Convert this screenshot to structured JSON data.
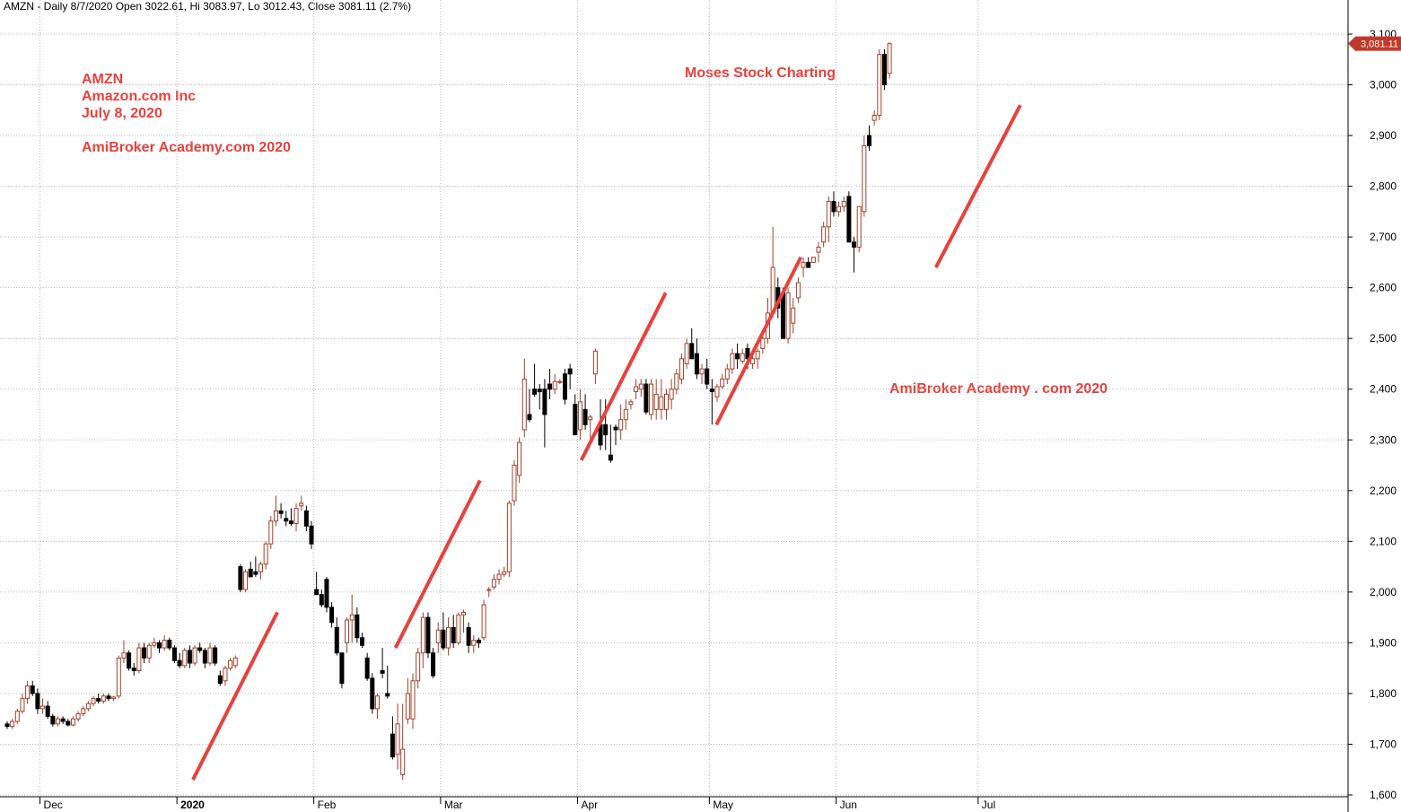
{
  "header": "AMZN - Daily 8/7/2020 Open 3022.61, Hi 3083.97, Lo 3012.43, Close 3081.11 (2.7%)",
  "annotations": {
    "info_lines": [
      "AMZN",
      "Amazon.com Inc",
      "July 8, 2020"
    ],
    "watermark_1": "AmiBroker Academy.com  2020",
    "watermark_2": "Moses Stock Charting",
    "watermark_3": "AmiBroker Academy . com  2020"
  },
  "colors": {
    "annotation": "#e8413c",
    "up_candle": "#a0412a",
    "down_candle": "#000000",
    "trend_line": "#e8413c",
    "last_price_bg": "#c0392b"
  },
  "chart_data": {
    "type": "candlestick",
    "ylim": [
      1600,
      3100
    ],
    "y_ticks": [
      "1,600",
      "1,700",
      "1,800",
      "1,900",
      "2,000",
      "2,100",
      "2,200",
      "2,300",
      "2,400",
      "2,500",
      "2,600",
      "2,700",
      "2,800",
      "2,900",
      "3,000",
      "3,100"
    ],
    "x_ticks": [
      {
        "label": "Dec",
        "bold": false
      },
      {
        "label": "2020",
        "bold": true
      },
      {
        "label": "Feb",
        "bold": false
      },
      {
        "label": "Mar",
        "bold": false
      },
      {
        "label": "Apr",
        "bold": false
      },
      {
        "label": "May",
        "bold": false
      },
      {
        "label": "Jun",
        "bold": false
      },
      {
        "label": "Jul",
        "bold": false
      }
    ],
    "last_price": "3,081.11",
    "last_close": 3081.11,
    "grid": true,
    "candles": [
      [
        1740,
        1745,
        1730,
        1735
      ],
      [
        1735,
        1750,
        1730,
        1745
      ],
      [
        1745,
        1770,
        1740,
        1765
      ],
      [
        1765,
        1800,
        1760,
        1790
      ],
      [
        1790,
        1825,
        1780,
        1815
      ],
      [
        1815,
        1825,
        1795,
        1800
      ],
      [
        1800,
        1810,
        1760,
        1770
      ],
      [
        1770,
        1790,
        1760,
        1775
      ],
      [
        1775,
        1785,
        1750,
        1755
      ],
      [
        1755,
        1760,
        1735,
        1740
      ],
      [
        1740,
        1755,
        1735,
        1750
      ],
      [
        1750,
        1755,
        1740,
        1745
      ],
      [
        1745,
        1750,
        1735,
        1738
      ],
      [
        1738,
        1755,
        1735,
        1750
      ],
      [
        1750,
        1765,
        1745,
        1760
      ],
      [
        1760,
        1775,
        1755,
        1770
      ],
      [
        1770,
        1785,
        1765,
        1780
      ],
      [
        1780,
        1795,
        1775,
        1790
      ],
      [
        1790,
        1800,
        1780,
        1785
      ],
      [
        1785,
        1800,
        1780,
        1795
      ],
      [
        1795,
        1800,
        1785,
        1790
      ],
      [
        1790,
        1795,
        1785,
        1793
      ],
      [
        1795,
        1875,
        1790,
        1870
      ],
      [
        1870,
        1905,
        1860,
        1880
      ],
      [
        1880,
        1885,
        1845,
        1850
      ],
      [
        1850,
        1860,
        1835,
        1845
      ],
      [
        1845,
        1900,
        1840,
        1890
      ],
      [
        1890,
        1900,
        1860,
        1870
      ],
      [
        1870,
        1900,
        1860,
        1895
      ],
      [
        1895,
        1910,
        1890,
        1900
      ],
      [
        1900,
        1905,
        1880,
        1890
      ],
      [
        1890,
        1915,
        1885,
        1905
      ],
      [
        1905,
        1910,
        1885,
        1890
      ],
      [
        1890,
        1895,
        1860,
        1865
      ],
      [
        1865,
        1880,
        1850,
        1855
      ],
      [
        1855,
        1890,
        1850,
        1885
      ],
      [
        1885,
        1895,
        1850,
        1860
      ],
      [
        1860,
        1895,
        1855,
        1890
      ],
      [
        1890,
        1900,
        1880,
        1885
      ],
      [
        1885,
        1890,
        1850,
        1860
      ],
      [
        1860,
        1900,
        1855,
        1890
      ],
      [
        1890,
        1895,
        1855,
        1860
      ],
      [
        1835,
        1845,
        1815,
        1820
      ],
      [
        1825,
        1855,
        1815,
        1850
      ],
      [
        1850,
        1870,
        1845,
        1865
      ],
      [
        1855,
        1875,
        1850,
        1870
      ],
      [
        2050,
        2055,
        2000,
        2005
      ],
      [
        2005,
        2045,
        2000,
        2040
      ],
      [
        2045,
        2060,
        2030,
        2030
      ],
      [
        2040,
        2070,
        2030,
        2035
      ],
      [
        2040,
        2060,
        2025,
        2055
      ],
      [
        2055,
        2100,
        2045,
        2095
      ],
      [
        2095,
        2150,
        2085,
        2140
      ],
      [
        2140,
        2190,
        2130,
        2160
      ],
      [
        2160,
        2175,
        2145,
        2155
      ],
      [
        2145,
        2160,
        2130,
        2140
      ],
      [
        2140,
        2165,
        2130,
        2135
      ],
      [
        2135,
        2175,
        2120,
        2165
      ],
      [
        2170,
        2190,
        2160,
        2175
      ],
      [
        2160,
        2170,
        2120,
        2130
      ],
      [
        2130,
        2140,
        2085,
        2095
      ],
      [
        2005,
        2040,
        1995,
        1995
      ],
      [
        1995,
        2005,
        1970,
        1975
      ],
      [
        2025,
        2030,
        1960,
        1970
      ],
      [
        1970,
        1980,
        1930,
        1940
      ],
      [
        1930,
        1950,
        1875,
        1880
      ],
      [
        1880,
        1880,
        1810,
        1820
      ],
      [
        1900,
        1950,
        1880,
        1945
      ],
      [
        1945,
        1995,
        1900,
        1955
      ],
      [
        1955,
        1970,
        1900,
        1910
      ],
      [
        1910,
        1920,
        1890,
        1895
      ],
      [
        1870,
        1880,
        1825,
        1830
      ],
      [
        1830,
        1840,
        1760,
        1770
      ],
      [
        1770,
        1800,
        1750,
        1795
      ],
      [
        1845,
        1890,
        1830,
        1840
      ],
      [
        1800,
        1855,
        1790,
        1795
      ],
      [
        1720,
        1755,
        1670,
        1675
      ],
      [
        1680,
        1780,
        1650,
        1740
      ],
      [
        1640,
        1780,
        1630,
        1690
      ],
      [
        1750,
        1830,
        1740,
        1800
      ],
      [
        1750,
        1840,
        1730,
        1825
      ],
      [
        1825,
        1890,
        1810,
        1880
      ],
      [
        1880,
        1960,
        1850,
        1950
      ],
      [
        1950,
        1960,
        1870,
        1880
      ],
      [
        1880,
        1890,
        1830,
        1835
      ],
      [
        1900,
        1940,
        1880,
        1925
      ],
      [
        1925,
        1960,
        1885,
        1890
      ],
      [
        1890,
        1950,
        1875,
        1930
      ],
      [
        1930,
        1955,
        1890,
        1900
      ],
      [
        1900,
        1960,
        1895,
        1955
      ],
      [
        1955,
        1965,
        1920,
        1960
      ],
      [
        1930,
        1940,
        1880,
        1895
      ],
      [
        1895,
        1915,
        1880,
        1905
      ],
      [
        1905,
        1910,
        1890,
        1900
      ],
      [
        1910,
        1985,
        1905,
        1975
      ],
      [
        2005,
        2010,
        1990,
        2005
      ],
      [
        2010,
        2035,
        2005,
        2025
      ],
      [
        2025,
        2045,
        2015,
        2035
      ],
      [
        2035,
        2050,
        2030,
        2040
      ],
      [
        2040,
        2180,
        2030,
        2175
      ],
      [
        2180,
        2260,
        2170,
        2250
      ],
      [
        2230,
        2305,
        2215,
        2295
      ],
      [
        2320,
        2460,
        2305,
        2420
      ],
      [
        2350,
        2400,
        2335,
        2340
      ],
      [
        2400,
        2450,
        2385,
        2390
      ],
      [
        2400,
        2410,
        2360,
        2395
      ],
      [
        2400,
        2420,
        2285,
        2350
      ],
      [
        2410,
        2440,
        2380,
        2400
      ],
      [
        2400,
        2430,
        2390,
        2415
      ],
      [
        2415,
        2420,
        2410,
        2415
      ],
      [
        2430,
        2440,
        2370,
        2380
      ],
      [
        2440,
        2450,
        2400,
        2430
      ],
      [
        2370,
        2390,
        2310,
        2310
      ],
      [
        2320,
        2400,
        2300,
        2375
      ],
      [
        2360,
        2390,
        2320,
        2330
      ],
      [
        2340,
        2350,
        2300,
        2345
      ],
      [
        2430,
        2480,
        2410,
        2475
      ],
      [
        2330,
        2380,
        2280,
        2290
      ],
      [
        2330,
        2380,
        2280,
        2310
      ],
      [
        2270,
        2330,
        2255,
        2260
      ],
      [
        2325,
        2330,
        2290,
        2320
      ],
      [
        2320,
        2370,
        2300,
        2340
      ],
      [
        2340,
        2380,
        2320,
        2360
      ],
      [
        2370,
        2380,
        2360,
        2375
      ],
      [
        2395,
        2420,
        2380,
        2405
      ],
      [
        2400,
        2420,
        2385,
        2410
      ],
      [
        2410,
        2420,
        2350,
        2355
      ],
      [
        2350,
        2420,
        2340,
        2410
      ],
      [
        2360,
        2420,
        2340,
        2390
      ],
      [
        2360,
        2420,
        2340,
        2385
      ],
      [
        2360,
        2400,
        2340,
        2390
      ],
      [
        2380,
        2420,
        2360,
        2400
      ],
      [
        2400,
        2440,
        2390,
        2430
      ],
      [
        2420,
        2470,
        2410,
        2460
      ],
      [
        2450,
        2500,
        2440,
        2490
      ],
      [
        2490,
        2520,
        2460,
        2460
      ],
      [
        2470,
        2500,
        2420,
        2430
      ],
      [
        2430,
        2450,
        2410,
        2440
      ],
      [
        2440,
        2460,
        2400,
        2410
      ],
      [
        2400,
        2420,
        2330,
        2395
      ],
      [
        2385,
        2410,
        2375,
        2405
      ],
      [
        2405,
        2430,
        2400,
        2420
      ],
      [
        2420,
        2450,
        2410,
        2440
      ],
      [
        2440,
        2480,
        2430,
        2470
      ],
      [
        2470,
        2490,
        2440,
        2460
      ],
      [
        2455,
        2480,
        2450,
        2470
      ],
      [
        2480,
        2490,
        2440,
        2460
      ],
      [
        2450,
        2470,
        2440,
        2460
      ],
      [
        2460,
        2480,
        2440,
        2475
      ],
      [
        2480,
        2510,
        2470,
        2500
      ],
      [
        2500,
        2580,
        2490,
        2550
      ],
      [
        2550,
        2720,
        2540,
        2640
      ],
      [
        2600,
        2620,
        2540,
        2560
      ],
      [
        2590,
        2600,
        2500,
        2500
      ],
      [
        2500,
        2600,
        2490,
        2590
      ],
      [
        2530,
        2580,
        2510,
        2560
      ],
      [
        2580,
        2620,
        2570,
        2610
      ],
      [
        2640,
        2660,
        2620,
        2650
      ],
      [
        2650,
        2660,
        2640,
        2640
      ],
      [
        2650,
        2660,
        2650,
        2660
      ],
      [
        2670,
        2690,
        2650,
        2680
      ],
      [
        2690,
        2730,
        2680,
        2720
      ],
      [
        2720,
        2780,
        2690,
        2770
      ],
      [
        2770,
        2790,
        2740,
        2750
      ],
      [
        2750,
        2770,
        2740,
        2760
      ],
      [
        2760,
        2780,
        2750,
        2770
      ],
      [
        2780,
        2790,
        2690,
        2690
      ],
      [
        2690,
        2700,
        2630,
        2680
      ],
      [
        2680,
        2760,
        2670,
        2760
      ],
      [
        2750,
        2900,
        2740,
        2880
      ],
      [
        2900,
        2920,
        2870,
        2880
      ],
      [
        2930,
        2950,
        2920,
        2940
      ],
      [
        2940,
        3070,
        2930,
        3060
      ],
      [
        3060,
        3070,
        2990,
        3000
      ],
      [
        3022.61,
        3083.97,
        3012.43,
        3081.11
      ]
    ],
    "trend_lines": [
      {
        "from": [
          11,
          1630
        ],
        "to": [
          16,
          1960
        ]
      },
      {
        "from": [
          23,
          1890
        ],
        "to": [
          28,
          2220
        ]
      },
      {
        "from": [
          34,
          2260
        ],
        "to": [
          39,
          2590
        ]
      },
      {
        "from": [
          42,
          2330
        ],
        "to": [
          47,
          2660
        ]
      },
      {
        "from": [
          55,
          2640
        ],
        "to": [
          60,
          2960
        ]
      }
    ]
  }
}
